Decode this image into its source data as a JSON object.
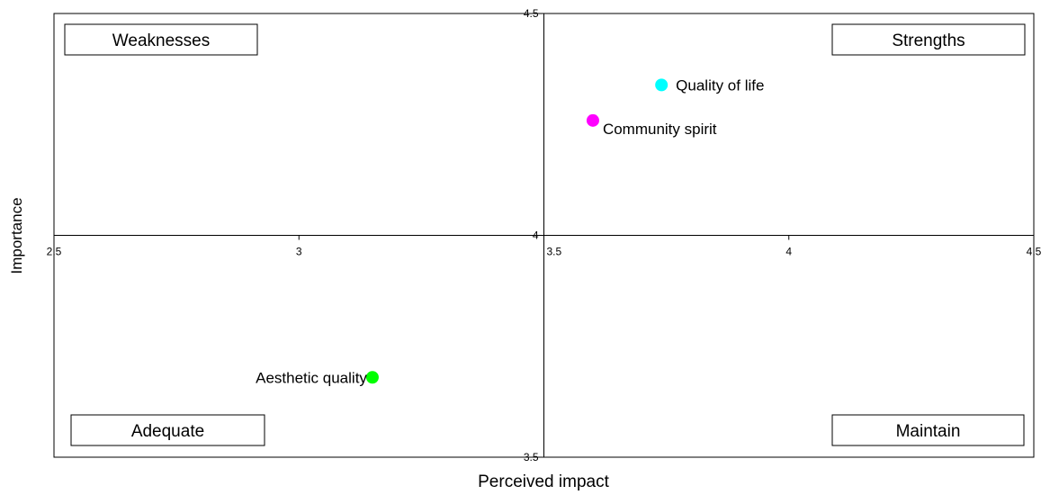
{
  "chart_data": {
    "type": "scatter",
    "title": "",
    "xlabel": "Perceived impact",
    "ylabel": "Importance",
    "xlim": [
      2.5,
      4.5
    ],
    "ylim": [
      3.5,
      4.5
    ],
    "x_ticks": [
      2.5,
      3,
      3.5,
      4,
      4.5
    ],
    "x_tick_labels": [
      "2.5",
      "3",
      "3.5",
      "4",
      "4.5"
    ],
    "y_ticks": [
      3.5,
      4,
      4.5
    ],
    "y_tick_labels": [
      "3.5",
      "4",
      "4.5"
    ],
    "axes_cross": {
      "x": 3.5,
      "y": 4
    },
    "grid": false,
    "legend": "none",
    "points": [
      {
        "label": "Quality of life",
        "x": 3.74,
        "y": 4.339,
        "color": "#00FFFF",
        "label_side": "right"
      },
      {
        "label": "Community spirit",
        "x": 3.6,
        "y": 4.259,
        "color": "#FF00FF",
        "label_side": "below-right"
      },
      {
        "label": "Aesthetic quality",
        "x": 3.15,
        "y": 3.68,
        "color": "#00FF00",
        "label_side": "left"
      }
    ],
    "quadrant_labels": [
      {
        "text": "Weaknesses",
        "quadrant": "top-left"
      },
      {
        "text": "Strengths",
        "quadrant": "top-right"
      },
      {
        "text": "Adequate",
        "quadrant": "bottom-left"
      },
      {
        "text": "Maintain",
        "quadrant": "bottom-right"
      }
    ]
  }
}
